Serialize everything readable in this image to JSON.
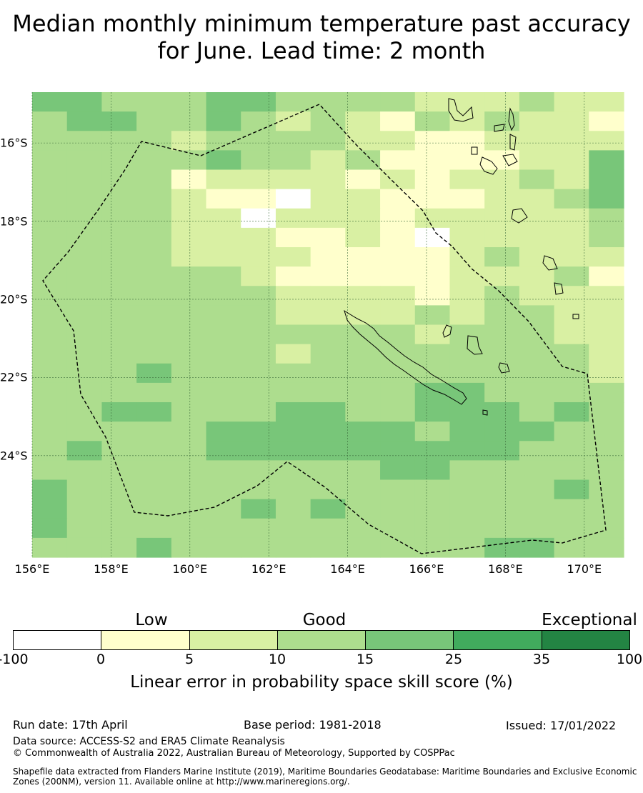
{
  "title": "Median monthly minimum temperature past accuracy for June. Lead time: 2 month",
  "map": {
    "lon_ticks": [
      "156°E",
      "158°E",
      "160°E",
      "162°E",
      "164°E",
      "166°E",
      "168°E",
      "170°E"
    ],
    "lat_ticks": [
      "16°S",
      "18°S",
      "20°S",
      "22°S",
      "24°S"
    ],
    "extent": {
      "lon_min": 156,
      "lon_max": 171,
      "lat_min": -26.6,
      "lat_max": -14.7
    },
    "grid_step_deg": 0.833,
    "skill_grid_classes": [
      "44333443333222322",
      "34433432321323221",
      "33332333322112222",
      "33333433231111224",
      "33331222212122324",
      "33332110221112234",
      "33332202221222223",
      "33332221121022223",
      "33332222111123222",
      "33333321111122231",
      "33333332222123222",
      "33333332222323322",
      "33333333333233322",
      "33333332333333332",
      "33343333333333332",
      "33333333333443333",
      "33443334433444343",
      "33333444444344433",
      "34333444444444333",
      "33333333334433333",
      "43333333333333343",
      "43333343433333333",
      "43333333333333333",
      "33343333333334433"
    ]
  },
  "legend": {
    "categories": [
      "Low",
      "Good",
      "Exceptional"
    ],
    "ticks": [
      "-100",
      "0",
      "5",
      "10",
      "15",
      "25",
      "35",
      "100"
    ],
    "colors": [
      "#ffffff",
      "#ffffcc",
      "#d9f0a3",
      "#addd8e",
      "#78c679",
      "#41ab5d",
      "#238443"
    ],
    "label": "Linear error in probability space skill score (%)"
  },
  "footer": {
    "run_date": "Run date: 17th April",
    "base_period": "Base period: 1981-2018",
    "issued": "Issued: 17/01/2022",
    "data_source": "Data source: ACCESS-S2 and ERA5 Climate Reanalysis",
    "copyright": "© Commonwealth of Australia 2022, Australian Bureau of Meteorology, Supported by COSPPac",
    "shapefile": "Shapefile data extracted from Flanders Marine Institute (2019), Maritime Boundaries Geodatabase: Maritime Boundaries and Exclusive Economic Zones (200NM), version 11. Available online at http://www.marineregions.org/."
  }
}
